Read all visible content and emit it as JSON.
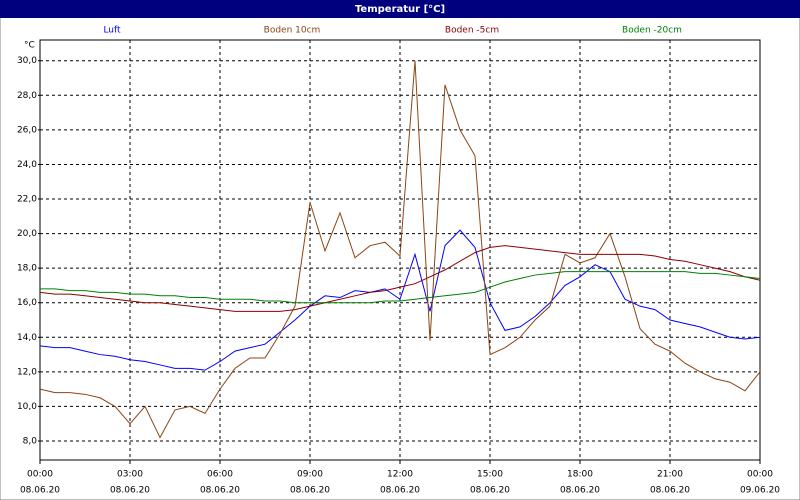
{
  "chart_data": {
    "type": "line",
    "title": "Temperatur [°C]",
    "y_label": "°C",
    "x": [
      0,
      0.5,
      1,
      1.5,
      2,
      2.5,
      3,
      3.5,
      4,
      4.5,
      5,
      5.5,
      6,
      6.5,
      7,
      7.5,
      8,
      8.5,
      9,
      9.5,
      10,
      10.5,
      11,
      11.5,
      12,
      12.5,
      13,
      13.5,
      14,
      14.5,
      15,
      15.5,
      16,
      16.5,
      17,
      17.5,
      18,
      18.5,
      19,
      19.5,
      20,
      20.5,
      21,
      21.5,
      22,
      22.5,
      23,
      23.5,
      24
    ],
    "series": [
      {
        "name": "Luft",
        "color": "#0000ff",
        "values": [
          13.5,
          13.4,
          13.4,
          13.2,
          13.0,
          12.9,
          12.7,
          12.6,
          12.4,
          12.2,
          12.2,
          12.1,
          12.6,
          13.2,
          13.4,
          13.6,
          14.3,
          15.0,
          15.8,
          16.4,
          16.3,
          16.7,
          16.6,
          16.8,
          16.2,
          18.8,
          15.5,
          19.3,
          20.2,
          19.2,
          16.0,
          14.4,
          14.6,
          15.2,
          16.0,
          17.0,
          17.5,
          18.2,
          17.8,
          16.2,
          15.8,
          15.6,
          15.0,
          14.8,
          14.6,
          14.3,
          14.0,
          13.9,
          14.0
        ]
      },
      {
        "name": "Boden 10cm",
        "color": "#8b4513",
        "values": [
          11.0,
          10.8,
          10.8,
          10.7,
          10.5,
          10.0,
          9.0,
          10.0,
          8.2,
          9.8,
          10.0,
          9.6,
          11.0,
          12.2,
          12.8,
          12.8,
          14.2,
          15.8,
          21.8,
          19.0,
          21.2,
          18.6,
          19.3,
          19.5,
          18.7,
          30.0,
          13.8,
          28.6,
          26.0,
          24.5,
          13.0,
          13.4,
          14.0,
          15.0,
          15.8,
          18.8,
          18.3,
          18.6,
          20.0,
          17.5,
          14.5,
          13.6,
          13.2,
          12.5,
          12.0,
          11.6,
          11.4,
          10.9,
          12.0
        ]
      },
      {
        "name": "Boden -5cm",
        "color": "#8b0000",
        "values": [
          16.6,
          16.5,
          16.5,
          16.4,
          16.3,
          16.2,
          16.1,
          16.0,
          16.0,
          15.9,
          15.8,
          15.7,
          15.6,
          15.5,
          15.5,
          15.5,
          15.5,
          15.6,
          15.8,
          16.0,
          16.2,
          16.4,
          16.6,
          16.7,
          16.9,
          17.1,
          17.5,
          17.9,
          18.4,
          18.9,
          19.2,
          19.3,
          19.2,
          19.1,
          19.0,
          18.9,
          18.8,
          18.8,
          18.8,
          18.8,
          18.8,
          18.7,
          18.5,
          18.4,
          18.2,
          18.0,
          17.8,
          17.5,
          17.3
        ]
      },
      {
        "name": "Boden -20cm",
        "color": "#008000",
        "values": [
          16.8,
          16.8,
          16.7,
          16.7,
          16.6,
          16.6,
          16.5,
          16.5,
          16.4,
          16.4,
          16.3,
          16.3,
          16.2,
          16.2,
          16.2,
          16.1,
          16.1,
          16.0,
          16.0,
          16.0,
          16.0,
          16.0,
          16.0,
          16.1,
          16.1,
          16.2,
          16.3,
          16.4,
          16.5,
          16.6,
          16.9,
          17.2,
          17.4,
          17.6,
          17.7,
          17.8,
          17.8,
          17.8,
          17.8,
          17.8,
          17.8,
          17.8,
          17.8,
          17.8,
          17.7,
          17.7,
          17.6,
          17.5,
          17.4
        ]
      }
    ],
    "xlim": [
      0,
      24
    ],
    "xticks": [
      {
        "value": 0,
        "label": "00:00"
      },
      {
        "value": 3,
        "label": "03:00"
      },
      {
        "value": 6,
        "label": "06:00"
      },
      {
        "value": 9,
        "label": "09:00"
      },
      {
        "value": 12,
        "label": "12:00"
      },
      {
        "value": 15,
        "label": "15:00"
      },
      {
        "value": 18,
        "label": "18:00"
      },
      {
        "value": 21,
        "label": "21:00"
      },
      {
        "value": 24,
        "label": "00:00"
      }
    ],
    "xtick_dates": [
      "08.06.20",
      "08.06.20",
      "08.06.20",
      "08.06.20",
      "08.06.20",
      "08.06.20",
      "08.06.20",
      "08.06.20",
      "09.06.20"
    ],
    "ylim": [
      6.9,
      31.2
    ],
    "yticks": [
      {
        "value": 8,
        "label": "8,0"
      },
      {
        "value": 10,
        "label": "10,0"
      },
      {
        "value": 12,
        "label": "12,0"
      },
      {
        "value": 14,
        "label": "14,0"
      },
      {
        "value": 16,
        "label": "16,0"
      },
      {
        "value": 18,
        "label": "18,0"
      },
      {
        "value": 20,
        "label": "20,0"
      },
      {
        "value": 22,
        "label": "22,0"
      },
      {
        "value": 24,
        "label": "24,0"
      },
      {
        "value": 26,
        "label": "26,0"
      },
      {
        "value": 28,
        "label": "28,0"
      },
      {
        "value": 30,
        "label": "30,0"
      }
    ],
    "grid": true
  }
}
